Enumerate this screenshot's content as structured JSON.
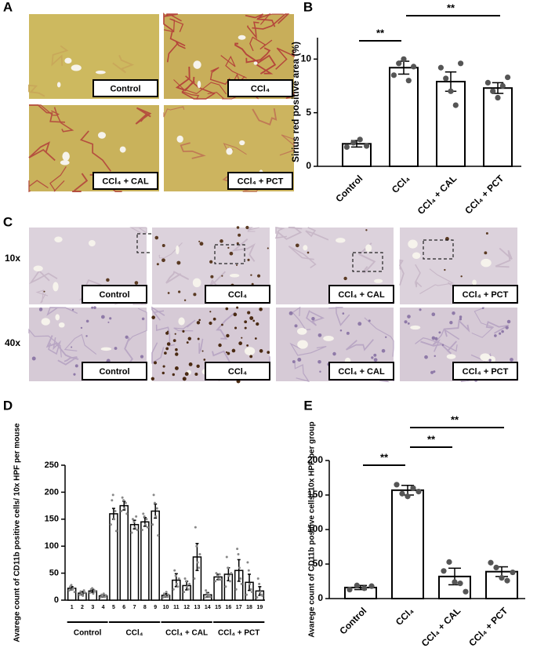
{
  "figure": {
    "panel_letters": [
      "A",
      "B",
      "C",
      "D",
      "E"
    ],
    "micrograph_a_labels": [
      "Control",
      "CCl₄",
      "CCl₄ + CAL",
      "CCl₄ + PCT"
    ],
    "micrograph_c_labels": [
      "Control",
      "CCl₄",
      "CCl₄ + CAL",
      "CCl₄ + PCT"
    ],
    "magnifications": [
      "10x",
      "40x"
    ]
  },
  "chart_data": [
    {
      "type": "bar",
      "categories": [
        "Control",
        "CCl₄",
        "CCl₄ + CAL",
        "CCl₄ + PCT"
      ],
      "values": [
        2.1,
        9.2,
        7.9,
        7.3
      ],
      "errors": [
        0.3,
        0.6,
        0.9,
        0.5
      ],
      "points": [
        [
          1.8,
          2.2,
          2.5,
          1.9
        ],
        [
          8.5,
          9.6,
          10.0,
          8.0,
          9.3
        ],
        [
          9.2,
          8.2,
          7.0,
          5.7,
          9.6
        ],
        [
          7.8,
          7.0,
          6.4,
          7.5,
          8.3
        ]
      ],
      "ylabel": "Sirius red positive area (%)",
      "ylim": [
        0,
        12
      ],
      "yticks": [
        0,
        5,
        10
      ],
      "color": "#ffffff",
      "significance": [
        {
          "text": "**",
          "between": [
            0,
            1
          ]
        },
        {
          "text": "**",
          "between": [
            1,
            3
          ]
        }
      ]
    },
    {
      "type": "bar",
      "categories": [
        "1",
        "2",
        "3",
        "4",
        "5",
        "6",
        "7",
        "8",
        "9",
        "10",
        "11",
        "12",
        "13",
        "14",
        "15",
        "16",
        "17",
        "18",
        "19"
      ],
      "values": [
        22,
        13,
        17,
        8,
        160,
        175,
        140,
        145,
        165,
        9,
        37,
        27,
        80,
        10,
        43,
        48,
        55,
        33,
        17
      ],
      "errors": [
        3,
        3,
        3,
        2,
        10,
        8,
        8,
        8,
        13,
        3,
        12,
        8,
        25,
        4,
        5,
        12,
        20,
        15,
        8
      ],
      "points": [
        [
          18,
          25,
          28,
          20,
          22,
          15
        ],
        [
          10,
          16,
          12,
          8,
          18,
          14
        ],
        [
          14,
          20,
          22,
          12,
          18,
          16
        ],
        [
          5,
          10,
          8,
          12,
          6,
          9
        ],
        [
          140,
          185,
          195,
          150,
          165,
          128
        ],
        [
          165,
          190,
          185,
          170,
          180,
          160
        ],
        [
          125,
          150,
          145,
          135,
          155,
          130
        ],
        [
          130,
          160,
          155,
          140,
          150,
          135
        ],
        [
          140,
          195,
          180,
          155,
          170,
          120
        ],
        [
          5,
          12,
          8,
          15,
          6,
          10
        ],
        [
          20,
          55,
          45,
          30,
          25,
          40
        ],
        [
          15,
          40,
          35,
          25,
          20,
          30
        ],
        [
          40,
          135,
          100,
          70,
          60,
          85
        ],
        [
          5,
          18,
          12,
          8,
          10,
          6
        ],
        [
          35,
          50,
          45,
          40,
          48,
          38
        ],
        [
          25,
          80,
          60,
          45,
          35,
          50
        ],
        [
          20,
          95,
          85,
          60,
          40,
          30
        ],
        [
          10,
          70,
          55,
          30,
          20,
          15
        ],
        [
          5,
          40,
          30,
          15,
          10,
          8
        ]
      ],
      "ylabel": "Avarege count of CD11b positive cells/ 10x HPF per mouse",
      "ylim": [
        0,
        250
      ],
      "yticks": [
        0,
        50,
        100,
        150,
        200,
        250
      ],
      "color": "#ffffff",
      "groups": [
        {
          "label": "Control",
          "first": 0,
          "last": 3
        },
        {
          "label": "CCl₄",
          "first": 4,
          "last": 8
        },
        {
          "label": "CCl₄ + CAL",
          "first": 9,
          "last": 13
        },
        {
          "label": "CCl₄ + PCT",
          "first": 14,
          "last": 18
        }
      ]
    },
    {
      "type": "bar",
      "categories": [
        "Control",
        "CCl₄",
        "CCl₄ + CAL",
        "CCl₄ + PCT"
      ],
      "values": [
        16,
        157,
        32,
        39
      ],
      "errors": [
        3,
        7,
        12,
        7
      ],
      "points": [
        [
          13,
          19,
          15,
          18
        ],
        [
          165,
          152,
          148,
          160,
          155
        ],
        [
          40,
          53,
          24,
          22,
          10
        ],
        [
          52,
          45,
          30,
          26,
          38
        ]
      ],
      "ylabel": "Avarege count of CD11b positive cells/ 10x HPF per group",
      "ylim": [
        0,
        200
      ],
      "yticks": [
        0,
        50,
        100,
        150,
        200
      ],
      "color": "#ffffff",
      "significance": [
        {
          "text": "**",
          "between": [
            0,
            1
          ]
        },
        {
          "text": "**",
          "between": [
            1,
            2
          ]
        },
        {
          "text": "**",
          "between": [
            1,
            3
          ]
        }
      ]
    }
  ]
}
